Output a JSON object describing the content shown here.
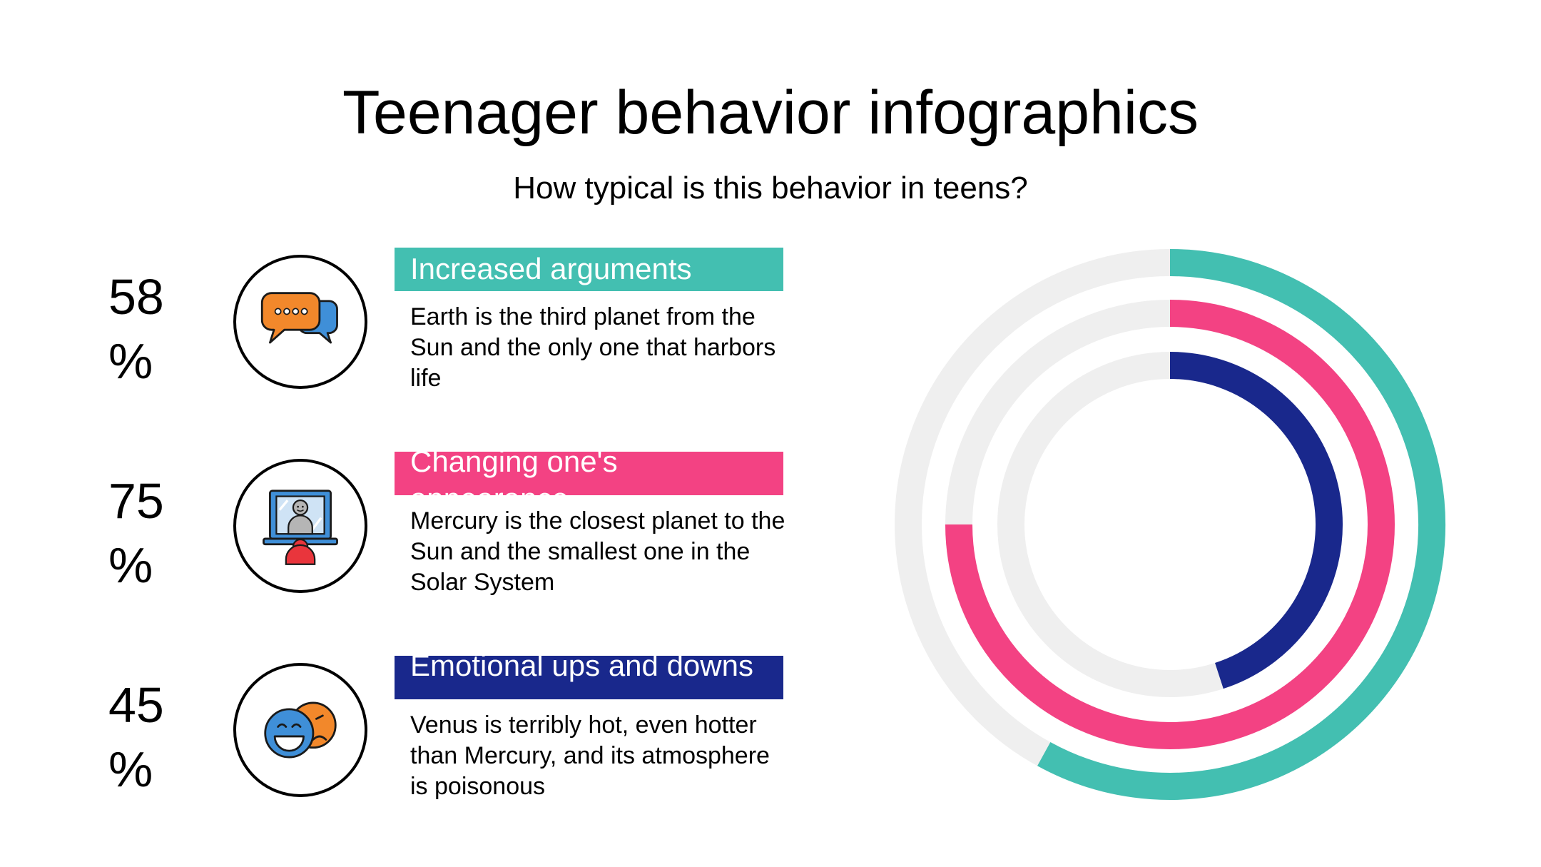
{
  "title": "Teenager behavior infographics",
  "subtitle": "How typical is this behavior in teens?",
  "colors": {
    "teal": "#43bfb1",
    "pink": "#f34283",
    "navy": "#19288c",
    "track": "#efefef"
  },
  "items": [
    {
      "value": "58",
      "unit": "%",
      "label": "Increased arguments",
      "description": "Earth is the third planet from the Sun and the only one that harbors life",
      "icon": "speech-bubbles-icon",
      "color": "#43bfb1"
    },
    {
      "value": "75",
      "unit": "%",
      "label": "Changing one's appearance",
      "description": "Mercury is the closest planet to the Sun and the smallest one in the Solar System",
      "icon": "mirror-person-icon",
      "color": "#f34283"
    },
    {
      "value": "45",
      "unit": "%",
      "label": "Emotional ups and downs",
      "description": "Venus is terribly hot, even hotter than Mercury, and its atmosphere is poisonous",
      "icon": "happy-sad-faces-icon",
      "color": "#19288c"
    }
  ],
  "chart_data": {
    "type": "radial-bar",
    "series": [
      {
        "name": "Increased arguments",
        "value": 58,
        "color": "#43bfb1"
      },
      {
        "name": "Changing one's appearance",
        "value": 75,
        "color": "#f34283"
      },
      {
        "name": "Emotional ups and downs",
        "value": 45,
        "color": "#19288c"
      }
    ],
    "max": 100,
    "direction": "clockwise",
    "start": "top",
    "track_color": "#efefef"
  }
}
